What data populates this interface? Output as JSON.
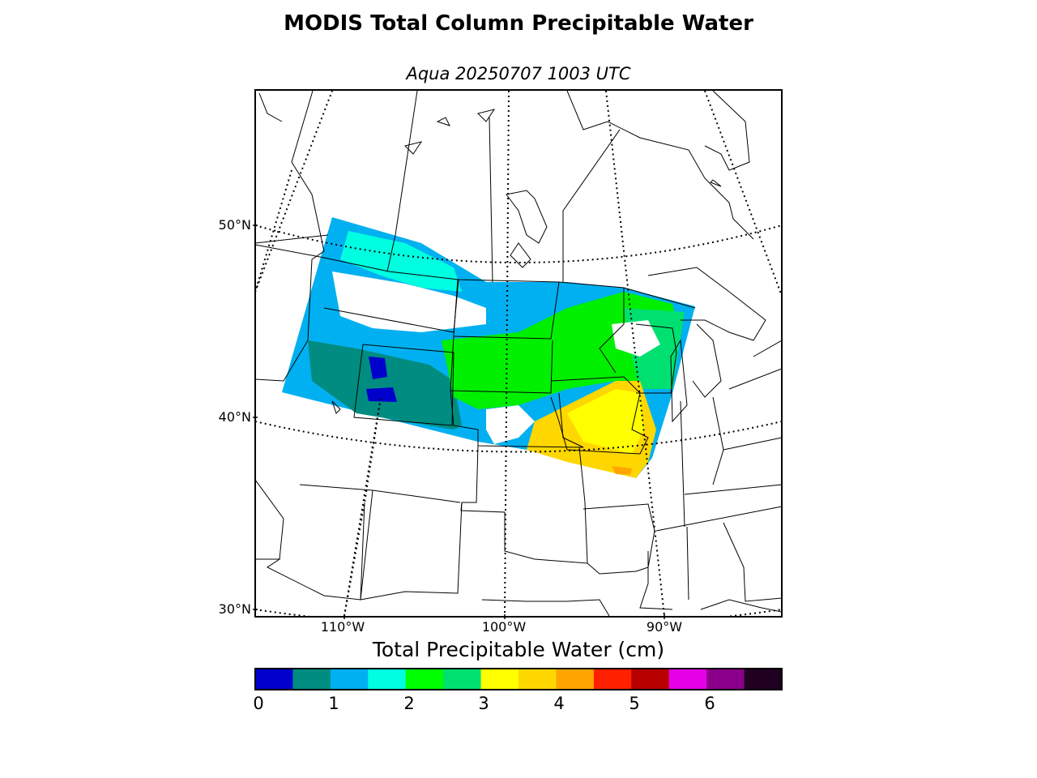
{
  "header": {
    "title": "MODIS Total Column Precipitable Water",
    "subtitle": "Aqua 20250707 1003 UTC"
  },
  "map": {
    "latitude_labels": [
      "50°N",
      "40°N",
      "30°N"
    ],
    "longitude_labels": [
      "110°W",
      "100°W",
      "90°W"
    ],
    "swath_colors": {
      "cat_0_0_5": "#0000cd",
      "cat_0_5_1": "#008c80",
      "cat_1_1_5": "#00b0f0",
      "cat_1_5_2": "#00ffe0",
      "cat_2_2_5": "#00f000",
      "cat_2_5_3": "#00e070",
      "cat_3_3_5": "#ffff00",
      "cat_3_5_4": "#ffd700",
      "cat_4_4_5": "#ffa500"
    }
  },
  "colorbar": {
    "title": "Total Precipitable Water (cm)",
    "ticks": [
      "0",
      "1",
      "2",
      "3",
      "4",
      "5",
      "6"
    ],
    "colors": [
      "#0000cd",
      "#008c80",
      "#00b0f0",
      "#00ffe0",
      "#00ff00",
      "#00e070",
      "#ffff00",
      "#ffd700",
      "#ffa500",
      "#ff2000",
      "#b80000",
      "#e600e6",
      "#8b008b",
      "#200020"
    ]
  }
}
